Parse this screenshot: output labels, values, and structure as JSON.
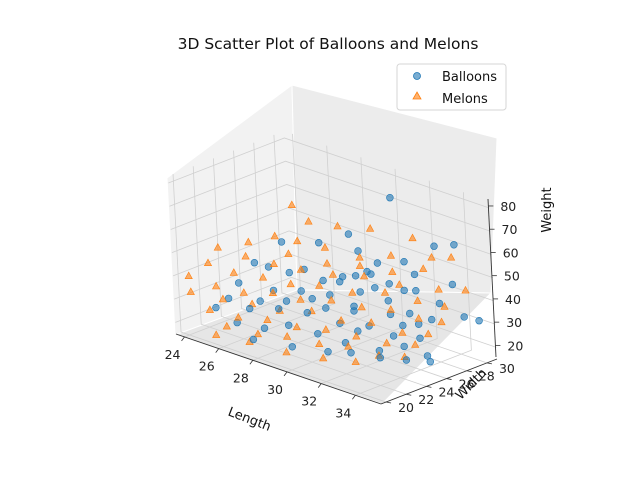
{
  "chart_data": {
    "type": "scatter",
    "title": "3D Scatter Plot of Balloons and Melons",
    "xlabel": "Length",
    "ylabel": "Width",
    "zlabel": "Weight",
    "xlim": [
      23.5,
      35.5
    ],
    "ylim": [
      19.5,
      31
    ],
    "zlim": [
      15,
      83
    ],
    "x_ticks": [
      "24",
      "26",
      "28",
      "30",
      "32",
      "34"
    ],
    "y_ticks": [
      "20",
      "22",
      "24",
      "26",
      "28",
      "30"
    ],
    "z_ticks": [
      "20",
      "30",
      "40",
      "50",
      "60",
      "70",
      "80"
    ],
    "grid": true,
    "legend_position": "top-right",
    "series": [
      {
        "name": "Balloons",
        "marker": "circle",
        "color": "#1f77b4",
        "points": [
          [
            31.2,
            28.4,
            78
          ],
          [
            34.5,
            29.0,
            65
          ],
          [
            33.8,
            28.2,
            64
          ],
          [
            29.6,
            26.8,
            61
          ],
          [
            27.0,
            24.5,
            55
          ],
          [
            28.6,
            25.5,
            57
          ],
          [
            32.4,
            27.5,
            55
          ],
          [
            31.8,
            25.2,
            52
          ],
          [
            34.6,
            28.5,
            49
          ],
          [
            33.0,
            26.4,
            46
          ],
          [
            27.8,
            23.8,
            45
          ],
          [
            29.3,
            24.6,
            44
          ],
          [
            30.8,
            25.7,
            41
          ],
          [
            32.2,
            26.1,
            40
          ],
          [
            33.5,
            26.0,
            38
          ],
          [
            34.3,
            26.8,
            36
          ],
          [
            34.9,
            29.0,
            35
          ],
          [
            35.1,
            30.1,
            32
          ],
          [
            26.1,
            21.6,
            40
          ],
          [
            27.6,
            22.5,
            39
          ],
          [
            28.7,
            23.4,
            40
          ],
          [
            29.9,
            24.2,
            40
          ],
          [
            31.0,
            24.7,
            37
          ],
          [
            32.6,
            25.6,
            36
          ],
          [
            33.7,
            26.5,
            33
          ],
          [
            25.7,
            21.2,
            33
          ],
          [
            26.8,
            21.4,
            31
          ],
          [
            28.1,
            22.1,
            33
          ],
          [
            29.3,
            22.9,
            33
          ],
          [
            30.6,
            23.9,
            30
          ],
          [
            31.9,
            24.6,
            31
          ],
          [
            32.9,
            25.3,
            28
          ],
          [
            34.1,
            25.9,
            29
          ],
          [
            25.1,
            20.9,
            28
          ],
          [
            26.2,
            21.1,
            24
          ],
          [
            27.5,
            21.6,
            24
          ],
          [
            28.4,
            22.5,
            26
          ],
          [
            29.8,
            23.0,
            25
          ],
          [
            31.0,
            23.7,
            23
          ],
          [
            32.5,
            24.5,
            22
          ],
          [
            33.5,
            25.3,
            25
          ],
          [
            34.4,
            26.3,
            19
          ],
          [
            30.6,
            22.6,
            20
          ],
          [
            27.3,
            20.8,
            20
          ],
          [
            29.1,
            21.6,
            20
          ],
          [
            31.6,
            23.2,
            21
          ],
          [
            32.9,
            23.9,
            21
          ],
          [
            33.9,
            24.8,
            21
          ],
          [
            34.8,
            25.4,
            24
          ],
          [
            30.1,
            24.9,
            45
          ],
          [
            31.5,
            26.0,
            44
          ],
          [
            28.2,
            24.6,
            46
          ],
          [
            29.8,
            25.7,
            45
          ],
          [
            26.7,
            23.6,
            45
          ],
          [
            30.7,
            25.5,
            48
          ],
          [
            32.0,
            26.6,
            46
          ],
          [
            33.2,
            27.2,
            45
          ],
          [
            34.2,
            27.8,
            41
          ],
          [
            32.8,
            27.8,
            50
          ],
          [
            31.3,
            26.7,
            53
          ],
          [
            30.3,
            26.5,
            56
          ],
          [
            26.3,
            22.9,
            47
          ],
          [
            28.9,
            24.1,
            36
          ],
          [
            29.5,
            24.4,
            33
          ],
          [
            30.8,
            25.0,
            34
          ],
          [
            33.3,
            25.6,
            33
          ],
          [
            31.4,
            24.3,
            28
          ],
          [
            26.9,
            22.3,
            33
          ],
          [
            28.1,
            22.9,
            35
          ],
          [
            30.9,
            26.3,
            49
          ]
        ]
      },
      {
        "name": "Melons",
        "marker": "triangle",
        "color": "#ff7f0e",
        "points": [
          [
            27.6,
            24.7,
            72
          ],
          [
            29.4,
            26.1,
            65
          ],
          [
            28.3,
            25.1,
            66
          ],
          [
            30.6,
            27.3,
            65
          ],
          [
            32.3,
            28.6,
            63
          ],
          [
            27.1,
            23.7,
            59
          ],
          [
            28.0,
            24.4,
            58
          ],
          [
            29.2,
            25.1,
            57
          ],
          [
            30.5,
            26.3,
            54
          ],
          [
            31.7,
            27.4,
            56
          ],
          [
            33.5,
            28.4,
            58
          ],
          [
            34.3,
            29.0,
            59
          ],
          [
            26.0,
            22.9,
            55
          ],
          [
            27.8,
            23.8,
            53
          ],
          [
            29.4,
            24.9,
            51
          ],
          [
            30.8,
            25.8,
            52
          ],
          [
            32.1,
            26.8,
            51
          ],
          [
            33.4,
            27.7,
            54
          ],
          [
            24.9,
            21.7,
            52
          ],
          [
            26.1,
            22.4,
            50
          ],
          [
            27.4,
            23.0,
            49
          ],
          [
            28.5,
            23.8,
            48
          ],
          [
            29.9,
            24.6,
            48
          ],
          [
            31.2,
            25.5,
            49
          ],
          [
            32.6,
            26.6,
            47
          ],
          [
            34.2,
            27.8,
            47
          ],
          [
            35.3,
            28.6,
            48
          ],
          [
            24.7,
            21.0,
            46
          ],
          [
            25.9,
            21.5,
            44
          ],
          [
            27.2,
            22.2,
            44
          ],
          [
            28.4,
            22.9,
            43
          ],
          [
            29.6,
            23.7,
            44
          ],
          [
            31.0,
            24.6,
            43
          ],
          [
            32.4,
            25.5,
            45
          ],
          [
            33.7,
            26.5,
            43
          ],
          [
            34.8,
            27.3,
            42
          ],
          [
            24.0,
            20.2,
            40
          ],
          [
            25.3,
            20.7,
            38
          ],
          [
            26.5,
            21.4,
            37
          ],
          [
            27.8,
            22.1,
            39
          ],
          [
            29.0,
            22.8,
            38
          ],
          [
            30.4,
            23.5,
            40
          ],
          [
            31.7,
            24.3,
            39
          ],
          [
            33.0,
            25.0,
            40
          ],
          [
            34.2,
            25.7,
            38
          ],
          [
            35.0,
            26.6,
            37
          ],
          [
            24.2,
            20.0,
            34
          ],
          [
            25.6,
            20.8,
            33
          ],
          [
            26.9,
            21.5,
            33
          ],
          [
            28.1,
            22.2,
            32
          ],
          [
            29.5,
            23.0,
            34
          ],
          [
            30.8,
            23.7,
            32
          ],
          [
            32.1,
            24.5,
            33
          ],
          [
            33.5,
            25.2,
            31
          ],
          [
            34.6,
            25.9,
            32
          ],
          [
            25.1,
            20.3,
            28
          ],
          [
            26.4,
            20.9,
            27
          ],
          [
            27.7,
            21.6,
            28
          ],
          [
            29.0,
            22.3,
            27
          ],
          [
            30.3,
            23.0,
            28
          ],
          [
            31.6,
            23.8,
            27
          ],
          [
            32.9,
            24.6,
            26
          ],
          [
            34.1,
            25.4,
            27
          ],
          [
            26.0,
            20.4,
            23
          ],
          [
            27.4,
            21.1,
            22
          ],
          [
            28.7,
            21.8,
            23
          ],
          [
            30.1,
            22.6,
            22
          ],
          [
            31.4,
            23.3,
            23
          ],
          [
            32.7,
            24.1,
            21
          ],
          [
            33.8,
            24.8,
            22
          ],
          [
            25.4,
            20.3,
            18
          ],
          [
            27.0,
            20.9,
            18
          ],
          [
            28.8,
            21.5,
            17
          ],
          [
            30.6,
            22.1,
            18
          ],
          [
            32.1,
            22.8,
            19
          ]
        ]
      }
    ]
  }
}
